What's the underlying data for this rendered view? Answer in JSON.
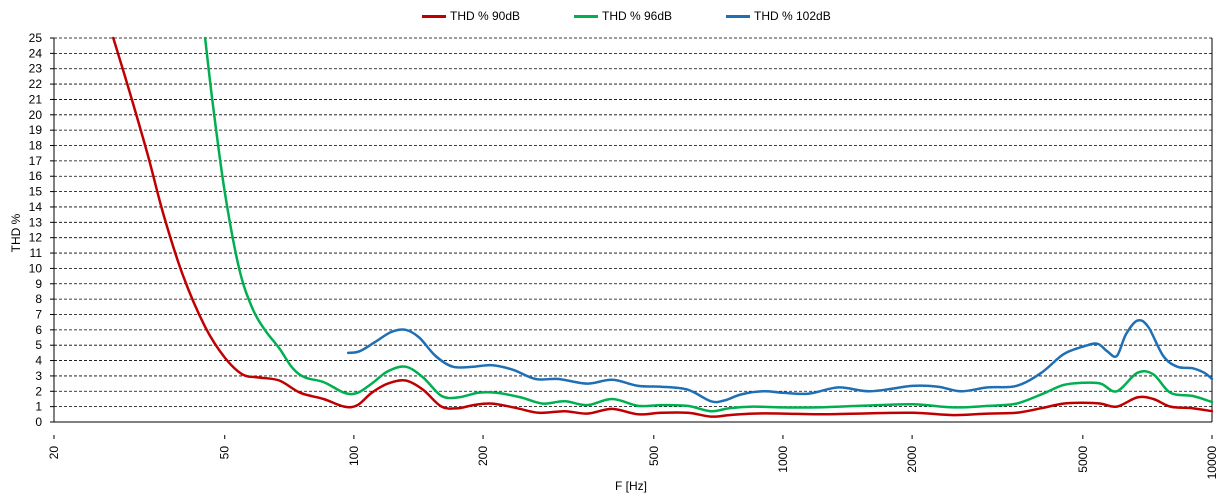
{
  "chart_data": {
    "type": "line",
    "xlabel": "F [Hz]",
    "ylabel": "THD %",
    "x_scale": "log",
    "xlim": [
      20,
      10000
    ],
    "ylim": [
      0,
      25
    ],
    "x_ticks": [
      20,
      50,
      100,
      200,
      500,
      1000,
      2000,
      5000,
      10000
    ],
    "y_ticks": [
      0,
      1,
      2,
      3,
      4,
      5,
      6,
      7,
      8,
      9,
      10,
      11,
      12,
      13,
      14,
      15,
      16,
      17,
      18,
      19,
      20,
      21,
      22,
      23,
      24,
      25
    ],
    "grid": "horizontal dashed",
    "legend_position": "top",
    "series": [
      {
        "name": "THD % 90dB",
        "color": "#c00000",
        "points": [
          [
            27.5,
            25.0
          ],
          [
            30,
            21.5
          ],
          [
            33,
            17.5
          ],
          [
            36,
            13.5
          ],
          [
            40,
            9.5
          ],
          [
            45,
            6.2
          ],
          [
            50,
            4.2
          ],
          [
            55,
            3.1
          ],
          [
            60,
            2.9
          ],
          [
            67,
            2.7
          ],
          [
            75,
            1.9
          ],
          [
            85,
            1.5
          ],
          [
            95,
            1.0
          ],
          [
            102,
            1.1
          ],
          [
            110,
            1.9
          ],
          [
            120,
            2.5
          ],
          [
            132,
            2.7
          ],
          [
            145,
            2.1
          ],
          [
            160,
            1.0
          ],
          [
            175,
            0.9
          ],
          [
            190,
            1.1
          ],
          [
            210,
            1.2
          ],
          [
            240,
            0.9
          ],
          [
            270,
            0.6
          ],
          [
            310,
            0.7
          ],
          [
            350,
            0.55
          ],
          [
            400,
            0.85
          ],
          [
            460,
            0.5
          ],
          [
            520,
            0.6
          ],
          [
            600,
            0.6
          ],
          [
            680,
            0.35
          ],
          [
            750,
            0.45
          ],
          [
            850,
            0.55
          ],
          [
            1000,
            0.55
          ],
          [
            1200,
            0.5
          ],
          [
            1500,
            0.55
          ],
          [
            2000,
            0.6
          ],
          [
            2500,
            0.45
          ],
          [
            3000,
            0.55
          ],
          [
            3500,
            0.6
          ],
          [
            4000,
            0.9
          ],
          [
            4500,
            1.2
          ],
          [
            5000,
            1.25
          ],
          [
            5500,
            1.2
          ],
          [
            6000,
            1.0
          ],
          [
            6700,
            1.6
          ],
          [
            7300,
            1.5
          ],
          [
            8000,
            1.0
          ],
          [
            9000,
            0.9
          ],
          [
            10000,
            0.7
          ]
        ]
      },
      {
        "name": "THD % 96dB",
        "color": "#00b050",
        "points": [
          [
            45,
            25.0
          ],
          [
            47,
            20.5
          ],
          [
            50,
            15.0
          ],
          [
            54,
            10.0
          ],
          [
            58,
            7.4
          ],
          [
            62,
            6.0
          ],
          [
            67,
            4.8
          ],
          [
            72,
            3.5
          ],
          [
            77,
            2.9
          ],
          [
            85,
            2.6
          ],
          [
            95,
            1.9
          ],
          [
            102,
            1.9
          ],
          [
            110,
            2.5
          ],
          [
            120,
            3.3
          ],
          [
            132,
            3.6
          ],
          [
            145,
            2.9
          ],
          [
            160,
            1.7
          ],
          [
            175,
            1.6
          ],
          [
            195,
            1.9
          ],
          [
            215,
            1.9
          ],
          [
            245,
            1.6
          ],
          [
            275,
            1.2
          ],
          [
            310,
            1.35
          ],
          [
            350,
            1.1
          ],
          [
            400,
            1.5
          ],
          [
            460,
            1.05
          ],
          [
            520,
            1.1
          ],
          [
            600,
            1.05
          ],
          [
            680,
            0.7
          ],
          [
            750,
            0.9
          ],
          [
            850,
            1.0
          ],
          [
            1000,
            0.95
          ],
          [
            1200,
            0.95
          ],
          [
            1500,
            1.05
          ],
          [
            2000,
            1.15
          ],
          [
            2500,
            0.95
          ],
          [
            3000,
            1.05
          ],
          [
            3500,
            1.2
          ],
          [
            4000,
            1.8
          ],
          [
            4500,
            2.4
          ],
          [
            5000,
            2.55
          ],
          [
            5500,
            2.5
          ],
          [
            6000,
            2.0
          ],
          [
            6700,
            3.2
          ],
          [
            7300,
            3.1
          ],
          [
            8000,
            1.9
          ],
          [
            9000,
            1.7
          ],
          [
            10000,
            1.3
          ]
        ]
      },
      {
        "name": "THD % 102dB",
        "color": "#1f6fb5",
        "points": [
          [
            97,
            4.5
          ],
          [
            103,
            4.6
          ],
          [
            112,
            5.2
          ],
          [
            122,
            5.85
          ],
          [
            132,
            6.0
          ],
          [
            142,
            5.5
          ],
          [
            155,
            4.3
          ],
          [
            170,
            3.6
          ],
          [
            190,
            3.6
          ],
          [
            210,
            3.7
          ],
          [
            235,
            3.4
          ],
          [
            265,
            2.8
          ],
          [
            300,
            2.8
          ],
          [
            350,
            2.5
          ],
          [
            400,
            2.75
          ],
          [
            460,
            2.35
          ],
          [
            520,
            2.3
          ],
          [
            600,
            2.1
          ],
          [
            680,
            1.35
          ],
          [
            730,
            1.4
          ],
          [
            800,
            1.8
          ],
          [
            900,
            2.0
          ],
          [
            1000,
            1.9
          ],
          [
            1150,
            1.85
          ],
          [
            1350,
            2.25
          ],
          [
            1600,
            2.0
          ],
          [
            2000,
            2.35
          ],
          [
            2300,
            2.3
          ],
          [
            2600,
            2.0
          ],
          [
            3000,
            2.25
          ],
          [
            3500,
            2.35
          ],
          [
            4000,
            3.2
          ],
          [
            4500,
            4.4
          ],
          [
            5000,
            4.9
          ],
          [
            5400,
            5.1
          ],
          [
            5700,
            4.6
          ],
          [
            6000,
            4.3
          ],
          [
            6300,
            5.7
          ],
          [
            6700,
            6.6
          ],
          [
            7100,
            6.2
          ],
          [
            7700,
            4.3
          ],
          [
            8300,
            3.6
          ],
          [
            9000,
            3.5
          ],
          [
            9600,
            3.2
          ],
          [
            10000,
            2.8
          ]
        ]
      }
    ]
  }
}
